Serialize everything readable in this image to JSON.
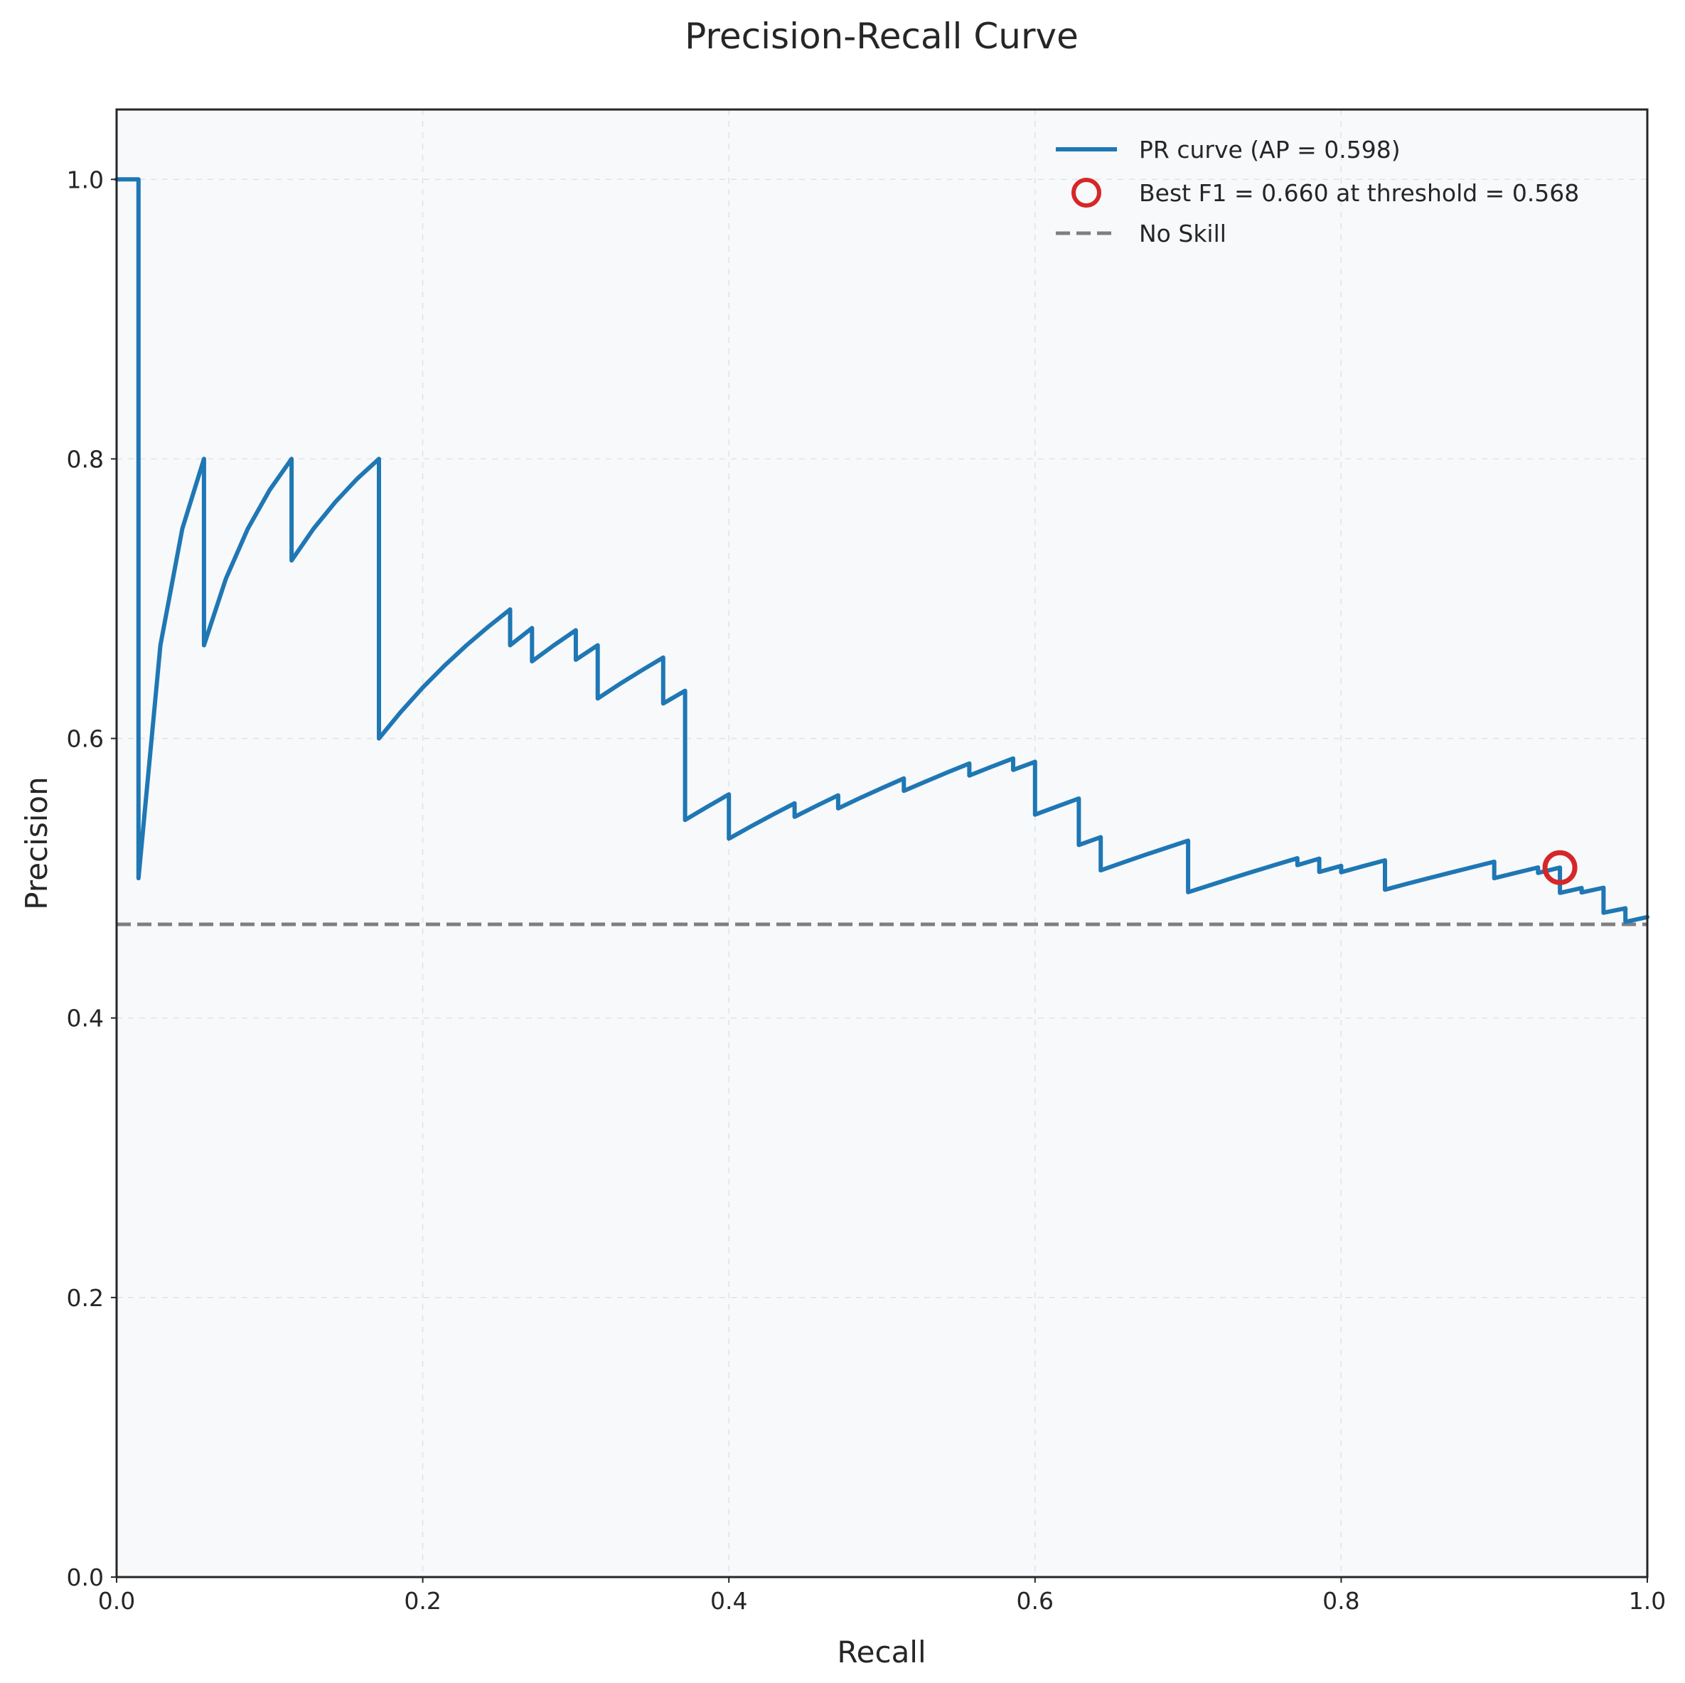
{
  "chart_data": {
    "type": "line",
    "title": "Precision-Recall Curve",
    "xlabel": "Recall",
    "ylabel": "Precision",
    "xlim": [
      0.0,
      1.0
    ],
    "ylim": [
      0.0,
      1.05
    ],
    "xticks": [
      0.0,
      0.2,
      0.4,
      0.6,
      0.8,
      1.0
    ],
    "yticks": [
      0.0,
      0.2,
      0.4,
      0.6,
      0.8,
      1.0
    ],
    "xtick_labels": [
      "0.0",
      "0.2",
      "0.4",
      "0.6",
      "0.8",
      "1.0"
    ],
    "ytick_labels": [
      "0.0",
      "0.2",
      "0.4",
      "0.6",
      "0.8",
      "1.0"
    ],
    "grid": true,
    "legend_position": "top-right",
    "series": [
      {
        "name": "PR curve (AP = 0.598)",
        "color": "#1f77b4",
        "style": "solid",
        "x": [
          0.0,
          0.0143,
          0.0143,
          0.0286,
          0.0429,
          0.0571,
          0.0571,
          0.0714,
          0.0857,
          0.1,
          0.1143,
          0.1143,
          0.1286,
          0.1429,
          0.1571,
          0.1714,
          0.1714,
          0.1857,
          0.2,
          0.2143,
          0.2286,
          0.2429,
          0.2571,
          0.2571,
          0.2714,
          0.2714,
          0.2857,
          0.3,
          0.3,
          0.3143,
          0.3143,
          0.3286,
          0.3429,
          0.3571,
          0.3571,
          0.3714,
          0.3714,
          0.3857,
          0.4,
          0.4,
          0.4143,
          0.4286,
          0.4429,
          0.4429,
          0.4571,
          0.4714,
          0.4714,
          0.4857,
          0.5,
          0.5143,
          0.5143,
          0.5286,
          0.5429,
          0.5571,
          0.5571,
          0.5714,
          0.5857,
          0.5857,
          0.6,
          0.6,
          0.6143,
          0.6286,
          0.6286,
          0.6429,
          0.6429,
          0.6571,
          0.6714,
          0.6857,
          0.7,
          0.7,
          0.7143,
          0.7286,
          0.7429,
          0.7571,
          0.7714,
          0.7714,
          0.7857,
          0.7857,
          0.8,
          0.8,
          0.8143,
          0.8286,
          0.8286,
          0.8429,
          0.8571,
          0.8714,
          0.8857,
          0.9,
          0.9,
          0.9143,
          0.9286,
          0.9286,
          0.9429,
          0.9429,
          0.9571,
          0.9571,
          0.9714,
          0.9714,
          0.9857,
          0.9857,
          1.0
        ],
        "y": [
          1.0,
          1.0,
          0.5,
          0.6667,
          0.75,
          0.8,
          0.6667,
          0.7143,
          0.75,
          0.7778,
          0.8,
          0.7273,
          0.75,
          0.7692,
          0.7857,
          0.8,
          0.6,
          0.619,
          0.6364,
          0.6522,
          0.6667,
          0.68,
          0.6923,
          0.6667,
          0.679,
          0.6552,
          0.6667,
          0.6774,
          0.6563,
          0.6667,
          0.6286,
          0.6389,
          0.6486,
          0.6579,
          0.625,
          0.6341,
          0.5417,
          0.551,
          0.56,
          0.5283,
          0.537,
          0.5455,
          0.5536,
          0.5439,
          0.5517,
          0.5593,
          0.55,
          0.5574,
          0.5645,
          0.5714,
          0.5625,
          0.5692,
          0.5758,
          0.5821,
          0.5735,
          0.5797,
          0.5857,
          0.5775,
          0.5833,
          0.5455,
          0.5513,
          0.557,
          0.5238,
          0.5294,
          0.5056,
          0.5111,
          0.5165,
          0.5217,
          0.5269,
          0.49,
          0.495,
          0.5,
          0.5049,
          0.5096,
          0.5143,
          0.5094,
          0.514,
          0.5045,
          0.5088,
          0.5043,
          0.5086,
          0.5128,
          0.4918,
          0.496,
          0.5,
          0.504,
          0.5079,
          0.5118,
          0.5,
          0.5039,
          0.5077,
          0.5038,
          0.5076,
          0.4895,
          0.493,
          0.4898,
          0.4932,
          0.4753,
          0.4785,
          0.4688,
          0.4722
        ]
      },
      {
        "name": "Best F1 = 0.660 at threshold = 0.568",
        "color": "#d62728",
        "style": "marker-circle",
        "x": [
          0.9429
        ],
        "y": [
          0.5076
        ]
      },
      {
        "name": "No Skill",
        "color": "#7f7f7f",
        "style": "dashed",
        "x": [
          0.0,
          1.0
        ],
        "y": [
          0.467,
          0.467
        ]
      }
    ]
  }
}
